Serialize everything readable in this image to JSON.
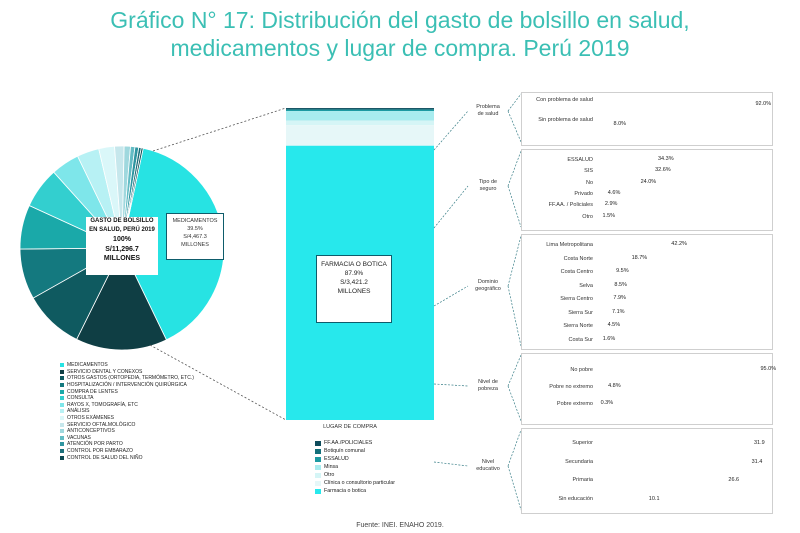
{
  "title": {
    "line1": "Gráfico N° 17: Distribución del gasto de bolsillo en salud,",
    "line2": "medicamentos y lugar de compra. Perú 2019"
  },
  "source": "Fuente: INEI.  ENAHO 2019.",
  "pie": {
    "center_lines": [
      "GASTO DE BOLSILLO",
      "EN SALUD, PERÚ 2019",
      "100%",
      "S/11,296.7",
      "MILLONES"
    ],
    "callout_lines": [
      "MEDICAMENTOS",
      "39.5%",
      "S/4,467.3",
      "MILLONES"
    ]
  },
  "pie_legend": [
    {
      "label": "MEDICAMENTOS",
      "color": "#27e3e3"
    },
    {
      "label": "SERVICIO DENTAL Y CONEXOS",
      "color": "#0f3e44"
    },
    {
      "label": "OTROS GASTOS (ORTOPEDIA, TERMÓMETRO, ETC.)",
      "color": "#0f5a60"
    },
    {
      "label": "HOSPITALIZACIÓN / INTERVENCIÓN QUIRÚRGICA",
      "color": "#14797f"
    },
    {
      "label": "COMPRA DE LENTES",
      "color": "#1aa9a9"
    },
    {
      "label": "CONSULTA",
      "color": "#33cfcf"
    },
    {
      "label": "RAYOS X, TOMOGRAFÍA, ETC",
      "color": "#7ee6ea"
    },
    {
      "label": "ANÁLISIS",
      "color": "#b7f1f4"
    },
    {
      "label": "OTROS EXÁMENES",
      "color": "#daf7f9"
    },
    {
      "label": "SERVICIO OFTALMOLÓGICO",
      "color": "#c6e7ec"
    },
    {
      "label": "ANTICONCEPTIVOS",
      "color": "#9fd8de"
    },
    {
      "label": "VACUNAS",
      "color": "#63bcc4"
    },
    {
      "label": "ATENCIÓN POR PARTO",
      "color": "#2f95a0"
    },
    {
      "label": "CONTROL POR EMBARAZO",
      "color": "#1a6f7a"
    },
    {
      "label": "CONTROL DE SALUD DEL NIÑO",
      "color": "#0d4a53"
    }
  ],
  "stack": {
    "label_lines": [
      "FARMACIA O BOTICA",
      "87.9%",
      "S/3,421.2",
      "MILLONES"
    ],
    "xlabel": "LUGAR DE COMPRA"
  },
  "stack_legend": [
    {
      "label": "FF.AA./POLICIALES",
      "color": "#0f4c5c"
    },
    {
      "label": "Botiquín comunal",
      "color": "#136f7a"
    },
    {
      "label": "ESSALUD",
      "color": "#1c9aa2"
    },
    {
      "label": "Minsa",
      "color": "#a8ecef"
    },
    {
      "label": "Otro",
      "color": "#d5f5f6"
    },
    {
      "label": "Clínica o consultorio particular",
      "color": "#e6f7f8"
    },
    {
      "label": "Farmacia o botica",
      "color": "#27e8ec"
    }
  ],
  "chart_data": [
    {
      "type": "pie",
      "title": "GASTO DE BOLSILLO EN SALUD, PERÚ 2019",
      "total": "S/11,296.7 MILLONES",
      "slices": [
        {
          "label": "MEDICAMENTOS",
          "value": 39.5,
          "color": "#27e3e3"
        },
        {
          "label": "SERVICIO DENTAL Y CONEXOS",
          "value": 14.5,
          "color": "#0f3e44"
        },
        {
          "label": "OTROS GASTOS (ORTOPEDIA, TERMÓMETRO, ETC.)",
          "value": 9.5,
          "color": "#0f5a60"
        },
        {
          "label": "HOSPITALIZACIÓN / INTERVENCIÓN QUIRÚRGICA",
          "value": 8.0,
          "color": "#14797f"
        },
        {
          "label": "COMPRA DE LENTES",
          "value": 7.0,
          "color": "#1aa9a9"
        },
        {
          "label": "CONSULTA",
          "value": 6.5,
          "color": "#33cfcf"
        },
        {
          "label": "RAYOS X, TOMOGRAFÍA, ETC",
          "value": 4.5,
          "color": "#7ee6ea"
        },
        {
          "label": "ANÁLISIS",
          "value": 3.5,
          "color": "#b7f1f4"
        },
        {
          "label": "OTROS EXÁMENES",
          "value": 2.5,
          "color": "#daf7f9"
        },
        {
          "label": "SERVICIO OFTALMOLÓGICO",
          "value": 1.5,
          "color": "#c6e7ec"
        },
        {
          "label": "ANTICONCEPTIVOS",
          "value": 1.0,
          "color": "#9fd8de"
        },
        {
          "label": "VACUNAS",
          "value": 0.7,
          "color": "#63bcc4"
        },
        {
          "label": "ATENCIÓN POR PARTO",
          "value": 0.6,
          "color": "#2f95a0"
        },
        {
          "label": "CONTROL POR EMBARAZO",
          "value": 0.4,
          "color": "#1a6f7a"
        },
        {
          "label": "CONTROL DE SALUD DEL NIÑO",
          "value": 0.3,
          "color": "#0d4a53"
        }
      ]
    },
    {
      "type": "bar",
      "stacked": true,
      "title": "LUGAR DE COMPRA",
      "series": [
        {
          "name": "FF.AA./POLICIALES",
          "value": 0.3
        },
        {
          "name": "Botiquín comunal",
          "value": 0.3
        },
        {
          "name": "ESSALUD",
          "value": 0.4
        },
        {
          "name": "Minsa",
          "value": 3.0
        },
        {
          "name": "Otro",
          "value": 1.5
        },
        {
          "name": "Clínica o consultorio particular",
          "value": 6.6
        },
        {
          "name": "Farmacia o botica",
          "value": 87.9
        }
      ],
      "ylim": [
        0,
        100
      ]
    },
    {
      "type": "bar",
      "orientation": "horizontal",
      "group": "Problema de salud",
      "categories": [
        "Con problema de salud",
        "Sin problema de salud"
      ],
      "values": [
        92.0,
        8.0
      ],
      "labels": [
        "92.0%",
        "8.0%"
      ],
      "colors": [
        "#0f5c6e",
        "#b8edf2"
      ],
      "xlim": [
        0,
        100
      ]
    },
    {
      "type": "bar",
      "orientation": "horizontal",
      "group": "Tipo de seguro",
      "categories": [
        "ESSALUD",
        "SIS",
        "No",
        "Privado",
        "FF.AA. / Policiales",
        "Otro"
      ],
      "values": [
        34.3,
        32.6,
        24.0,
        4.6,
        2.9,
        1.5
      ],
      "labels": [
        "34.3%",
        "32.6%",
        "24.0%",
        "4.6%",
        "2.9%",
        "1.5%"
      ],
      "colors": [
        "#0f5c6e",
        "#137a88",
        "#17a3a8",
        "#39c8cc",
        "#7edce2",
        "#b8edf2"
      ],
      "xlim": [
        0,
        100
      ]
    },
    {
      "type": "bar",
      "orientation": "horizontal",
      "group": "Dominio geográfico",
      "categories": [
        "Lima Metropolitana",
        "Costa Norte",
        "Costa Centro",
        "Selva",
        "Sierra Centro",
        "Sierra Sur",
        "Sierra Norte",
        "Costa Sur"
      ],
      "values": [
        42.2,
        18.7,
        9.5,
        8.5,
        7.9,
        7.1,
        4.5,
        1.6
      ],
      "labels": [
        "42.2%",
        "18.7%",
        "9.5%",
        "8.5%",
        "7.9%",
        "7.1%",
        "4.5%",
        "1.6%"
      ],
      "colors": [
        "#0f5c6e",
        "#137a88",
        "#1a9aa0",
        "#2fbcc0",
        "#5ccfd4",
        "#82dce1",
        "#a7e8ec",
        "#cdf3f6"
      ],
      "xlim": [
        0,
        100
      ]
    },
    {
      "type": "bar",
      "orientation": "horizontal",
      "group": "Nivel de pobreza",
      "categories": [
        "No pobre",
        "Pobre no extremo",
        "Pobre extremo"
      ],
      "values": [
        95.0,
        4.8,
        0.3
      ],
      "labels": [
        "95.0%",
        "4.8%",
        "0.3%"
      ],
      "colors": [
        "#0f5c6e",
        "#39c8cc",
        "#b8edf2"
      ],
      "xlim": [
        0,
        100
      ]
    },
    {
      "type": "bar",
      "orientation": "horizontal",
      "group": "Nivel educativo",
      "categories": [
        "Superior",
        "Secundaria",
        "Primaria",
        "Sin educación"
      ],
      "values": [
        31.9,
        31.4,
        26.6,
        10.1
      ],
      "labels": [
        "31.9",
        "31.4",
        "26.6",
        "10.1"
      ],
      "colors": [
        "#0f5c6e",
        "#17a3a8",
        "#5ccfd4",
        "#b8edf2"
      ],
      "xlim": [
        0,
        35
      ]
    }
  ]
}
